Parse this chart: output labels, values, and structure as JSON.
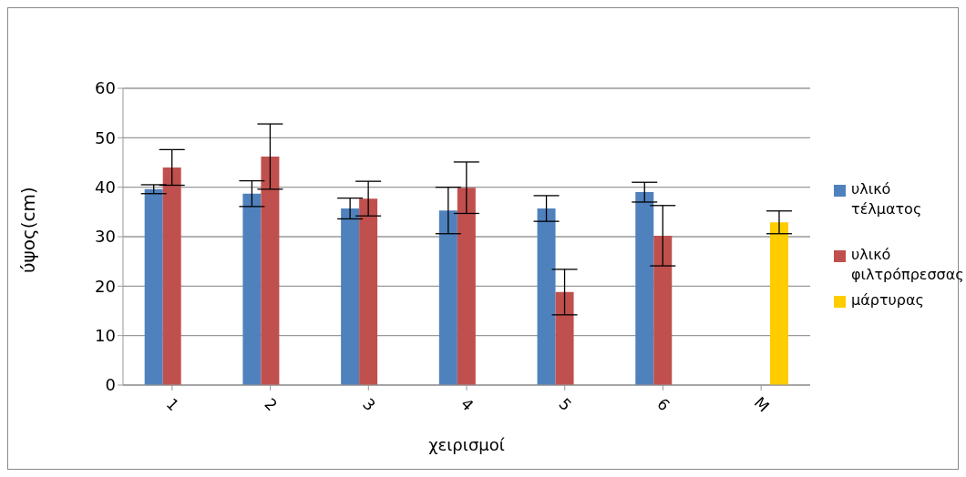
{
  "chart_data": {
    "type": "bar",
    "xlabel": "χειρισμοί",
    "ylabel": "ύψος(cm)",
    "categories": [
      "1",
      "2",
      "3",
      "4",
      "5",
      "6",
      "M"
    ],
    "series": [
      {
        "name": "υλικό τέλματος",
        "color": "#4f81bd",
        "values": [
          39.6,
          38.7,
          35.7,
          35.3,
          35.7,
          39.0,
          null
        ],
        "errors": [
          0.9,
          2.6,
          2.1,
          4.7,
          2.6,
          2.0,
          null
        ]
      },
      {
        "name": "υλικό φιλτρόπρεσσας",
        "color": "#c0504d",
        "values": [
          44.0,
          46.2,
          37.7,
          39.9,
          18.8,
          30.2,
          null
        ],
        "errors": [
          3.6,
          6.6,
          3.5,
          5.2,
          4.6,
          6.1,
          null
        ]
      },
      {
        "name": "μάρτυρας",
        "color": "#ffcc00",
        "values": [
          null,
          null,
          null,
          null,
          null,
          null,
          32.9
        ],
        "errors": [
          null,
          null,
          null,
          null,
          null,
          null,
          2.3
        ]
      }
    ],
    "ylim": [
      0,
      60
    ],
    "yticks": [
      0,
      10,
      20,
      30,
      40,
      50,
      60
    ],
    "grid": "y",
    "legend": "right"
  }
}
